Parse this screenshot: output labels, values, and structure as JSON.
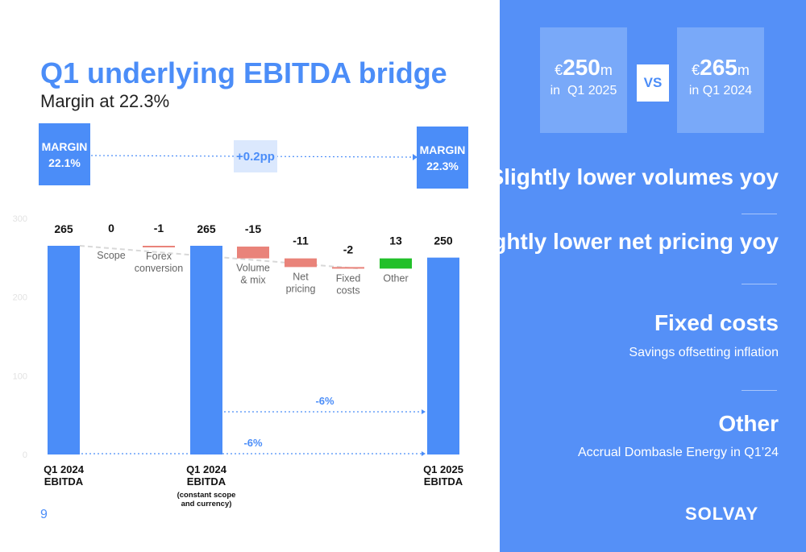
{
  "header": {
    "title": "Q1 underlying EBITDA bridge",
    "subtitle": "Margin at 22.3%"
  },
  "margins": {
    "left_label": "MARGIN",
    "left_value": "22.1%",
    "right_label": "MARGIN",
    "right_value": "22.3%",
    "change": "+0.2pp"
  },
  "page_number": "9",
  "colors": {
    "blue": "#4b8df8",
    "red": "#e9837a",
    "green": "#22c02a",
    "panel": "#5590f7"
  },
  "chart_data": {
    "type": "bar",
    "subtype": "waterfall",
    "yticks": [
      "0",
      "100",
      "200",
      "300"
    ],
    "ylim": [
      0,
      300
    ],
    "steps": [
      {
        "value_label": "265",
        "kind": "total",
        "start": 0,
        "end": 265,
        "label_lines": [
          "Q1 2024",
          "EBITDA"
        ]
      },
      {
        "value_label": "0",
        "kind": "delta",
        "start": 265,
        "end": 265,
        "label_lines": [
          "Scope"
        ]
      },
      {
        "value_label": "-1",
        "kind": "delta",
        "start": 265,
        "end": 264,
        "label_lines": [
          "Forex",
          "conversion"
        ]
      },
      {
        "value_label": "265",
        "kind": "total",
        "start": 0,
        "end": 265,
        "label_lines": [
          "Q1 2024",
          "EBITDA"
        ],
        "note_lines": [
          "(constant scope",
          "and currency)"
        ]
      },
      {
        "value_label": "-15",
        "kind": "delta",
        "start": 264,
        "end": 249,
        "label_lines": [
          "Volume",
          "& mix"
        ]
      },
      {
        "value_label": "-11",
        "kind": "delta",
        "start": 249,
        "end": 238,
        "label_lines": [
          "Net",
          "pricing"
        ]
      },
      {
        "value_label": "-2",
        "kind": "delta",
        "start": 238,
        "end": 236,
        "label_lines": [
          "Fixed",
          "costs"
        ]
      },
      {
        "value_label": "13",
        "kind": "delta",
        "start": 236,
        "end": 249,
        "label_lines": [
          "Other"
        ]
      },
      {
        "value_label": "250",
        "kind": "total",
        "start": 0,
        "end": 250,
        "label_lines": [
          "Q1 2025",
          "EBITDA"
        ]
      }
    ],
    "annotations": [
      {
        "text": "-6%",
        "from_step": 3,
        "to_step": 8
      },
      {
        "text": "-6%",
        "from_step": 0,
        "to_step": 8
      }
    ]
  },
  "sidebar": {
    "current": {
      "currency": "€",
      "amount": "250",
      "unit": "m",
      "period": "in  Q1 2025"
    },
    "vs_label": "VS",
    "previous": {
      "currency": "€",
      "amount": "265",
      "unit": "m",
      "period": "in Q1 2024"
    },
    "points": [
      {
        "heading": "Slightly lower volumes yoy",
        "detail": ""
      },
      {
        "heading": "Slightly lower net pricing yoy",
        "detail": ""
      },
      {
        "heading": "Fixed costs",
        "detail": "Savings offsetting inflation"
      },
      {
        "heading": "Other",
        "detail": "Accrual Dombasle Energy in Q1’24"
      }
    ],
    "logo": "SOLVAY"
  }
}
